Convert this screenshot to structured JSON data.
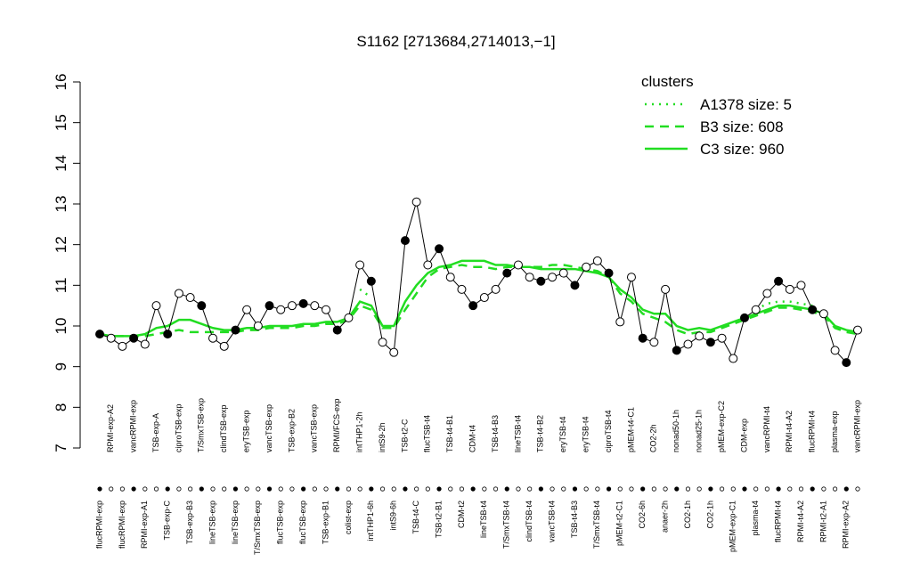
{
  "chart_data": {
    "type": "line",
    "title": "S1162 [2713684,2714013,−1]",
    "categories": [
      "flucRPMI-exp",
      "RPMI-exp-A2",
      "flucRPMI-exp",
      "vancRPMI-exp",
      "RPMI-exp-A1",
      "TSB-exp-A",
      "TSB-exp-C",
      "ciproTSB-exp",
      "TSB-exp-B3",
      "T/SmxTSB-exp",
      "lineTSB-exp",
      "clindTSB-exp",
      "lineTSB-exp",
      "eryTSB-exp",
      "T/SmxTSB-exp",
      "vancTSB-exp",
      "flucTSB-exp",
      "TSB-exp-B2",
      "flucTSB-exp",
      "vancTSB-exp",
      "TSB-exp-B1",
      "RPMI/FCS-exp",
      "colist-exp",
      "intTHP1-2h",
      "intTHP1-6h",
      "intS9-2h",
      "intS9-6h",
      "TSB-t2-C",
      "TSB-t4-C",
      "flucTSB-t4",
      "TSB-t2-B1",
      "TSB-t4-B1",
      "CDM-t2",
      "CDM-t4",
      "lineTSB-t4",
      "TSB-t4-B3",
      "T/SmxTSB-t4",
      "lineTSB-t4",
      "clindTSB-t4",
      "TSB-t4-B2",
      "vancTSB-t4",
      "eryTSB-t4",
      "TSB-t4-B3",
      "eryTSB-t4",
      "T/SmxTSB-t4",
      "ciproTSB-t4",
      "pMEM-t2-C1",
      "pMEM-t4-C1",
      "CO2-6h",
      "CO2-2h",
      "anaer-2h",
      "nonad50-1h",
      "CO2-1h",
      "nonad25-1h",
      "CO2-1h",
      "pMEM-exp-C2",
      "pMEM-exp-C1",
      "CDM-exp",
      "plasma-t4",
      "vancRPMI-t4",
      "flucRPMI-t4",
      "RPMI-t4-A2",
      "RPMI-t4-A2",
      "flucRPMI-t4",
      "RPMI-t2-A1",
      "plasma-exp",
      "RPMI-exp-A2",
      "vancRPMI-exp"
    ],
    "values": [
      9.8,
      9.7,
      9.5,
      9.7,
      9.55,
      10.5,
      9.8,
      10.8,
      10.7,
      10.5,
      9.7,
      9.5,
      9.9,
      10.4,
      10.0,
      10.5,
      10.4,
      10.5,
      10.55,
      10.5,
      10.4,
      9.9,
      10.2,
      11.5,
      11.1,
      9.6,
      9.35,
      12.1,
      13.05,
      11.5,
      11.9,
      11.2,
      10.9,
      10.5,
      10.7,
      10.9,
      11.3,
      11.5,
      11.2,
      11.1,
      11.2,
      11.3,
      11.0,
      11.45,
      11.6,
      11.3,
      10.1,
      11.2,
      9.7,
      9.6,
      10.9,
      9.4,
      9.55,
      9.75,
      9.6,
      9.7,
      9.2,
      10.2,
      10.4,
      10.8,
      11.1,
      10.9,
      11.0,
      10.4,
      10.3,
      9.4,
      9.1,
      9.9
    ],
    "series": [
      {
        "name": "A1378 size: 5",
        "color": "#22dd22",
        "dash": "dotted",
        "values": [
          null,
          null,
          null,
          null,
          null,
          null,
          null,
          null,
          null,
          null,
          null,
          null,
          null,
          null,
          null,
          null,
          null,
          null,
          null,
          null,
          null,
          null,
          null,
          10.9,
          10.7,
          null,
          null,
          null,
          null,
          null,
          null,
          null,
          null,
          null,
          null,
          null,
          null,
          null,
          null,
          null,
          null,
          null,
          null,
          null,
          null,
          null,
          null,
          null,
          null,
          null,
          null,
          null,
          null,
          null,
          null,
          null,
          null,
          null,
          10.4,
          10.55,
          10.6,
          10.6,
          10.55,
          10.5,
          null,
          null,
          null,
          null
        ]
      },
      {
        "name": "B3 size: 608",
        "color": "#22dd22",
        "dash": "dashed",
        "values": [
          9.8,
          9.75,
          9.75,
          9.75,
          9.75,
          9.8,
          9.85,
          9.9,
          9.85,
          9.85,
          9.85,
          9.85,
          9.85,
          9.9,
          9.9,
          9.95,
          9.95,
          9.95,
          10.0,
          10.0,
          10.05,
          10.05,
          10.15,
          10.5,
          10.4,
          9.95,
          9.95,
          10.4,
          10.8,
          11.2,
          11.4,
          11.45,
          11.5,
          11.45,
          11.45,
          11.4,
          11.45,
          11.45,
          11.45,
          11.45,
          11.5,
          11.5,
          11.45,
          11.4,
          11.35,
          11.2,
          10.8,
          10.6,
          10.3,
          10.2,
          10.1,
          9.9,
          9.8,
          9.85,
          9.85,
          9.95,
          10.05,
          10.15,
          10.25,
          10.35,
          10.45,
          10.45,
          10.4,
          10.35,
          10.25,
          9.95,
          9.85,
          9.8
        ]
      },
      {
        "name": "C3 size: 960",
        "color": "#22dd22",
        "dash": "solid",
        "values": [
          9.8,
          9.75,
          9.75,
          9.75,
          9.8,
          9.95,
          10.0,
          10.15,
          10.15,
          10.05,
          9.95,
          9.9,
          9.9,
          9.95,
          9.95,
          10.0,
          10.0,
          10.0,
          10.05,
          10.05,
          10.1,
          10.1,
          10.2,
          10.6,
          10.5,
          10.0,
          10.0,
          10.6,
          11.0,
          11.3,
          11.45,
          11.5,
          11.6,
          11.6,
          11.6,
          11.5,
          11.5,
          11.45,
          11.45,
          11.4,
          11.4,
          11.4,
          11.4,
          11.35,
          11.3,
          11.2,
          10.9,
          10.7,
          10.4,
          10.3,
          10.3,
          10.0,
          9.9,
          9.95,
          9.9,
          10.0,
          10.1,
          10.2,
          10.3,
          10.4,
          10.5,
          10.5,
          10.45,
          10.4,
          10.3,
          10.0,
          9.9,
          9.85
        ]
      }
    ],
    "legend_title": "clusters",
    "legend": "top-right",
    "ylim": [
      7,
      16
    ],
    "yticks": [
      7,
      8,
      9,
      10,
      11,
      12,
      13,
      14,
      15,
      16
    ]
  }
}
